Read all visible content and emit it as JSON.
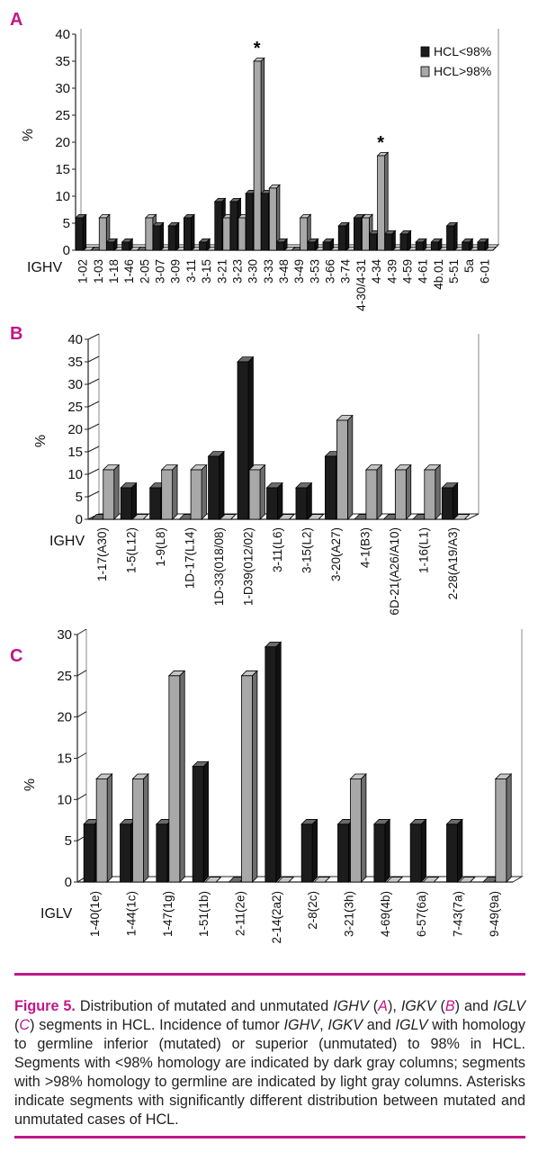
{
  "caption": {
    "figure_label": "Figure 5.",
    "t1": " Distribution of mutated and unmutated ",
    "t2": "IGHV",
    "t3": " (",
    "a": "A",
    "t4": "), ",
    "t5": "IGKV",
    "t6": " (",
    "b": "B",
    "t7": ") and ",
    "t8": "IGLV",
    "t9": " (",
    "c": "C",
    "t10": ") segments in HCL. Incidence of tumor ",
    "t11": "IGHV",
    "t12": ", ",
    "t13": "IGKV",
    "t14": " and ",
    "t15": "IGLV",
    "t16": " with homology to germline inferior (mutated) or superior (unmutated) to 98% in HCL. Segments with <98% homology are indicated by dark gray columns; segments with >98% homology to germline are indicated by light gray columns. Asterisks indicate segments with significantly different distribution between mutated and unmutated cases of HCL."
  },
  "chart_data": [
    {
      "panel": "A",
      "type": "bar",
      "ylabel": "%",
      "xlabel": "IGHV",
      "ylim": [
        0,
        40
      ],
      "yticks": [
        0,
        5,
        10,
        15,
        20,
        25,
        30,
        35,
        40
      ],
      "legend": "top-right",
      "categories": [
        "1-02",
        "1-03",
        "1-18",
        "1-46",
        "2-05",
        "3-07",
        "3-09",
        "3-11",
        "3-15",
        "3-21",
        "3-23",
        "3-30",
        "3-33",
        "3-48",
        "3-49",
        "3-53",
        "3-66",
        "3-74",
        "4-30/4-31",
        "4-34",
        "4-39",
        "4-59",
        "4-61",
        "4b.01",
        "5-51",
        "5a",
        "6-01"
      ],
      "series": [
        {
          "name": "HCL<98%",
          "color": "#1c1c1c",
          "values": [
            6,
            0,
            1.5,
            1.5,
            0,
            4.5,
            4.5,
            6,
            1.5,
            9,
            9,
            10.5,
            10.5,
            1.5,
            0,
            1.5,
            1.5,
            4.5,
            6,
            3,
            3,
            3,
            1.5,
            1.5,
            4.5,
            1.5,
            1.5
          ]
        },
        {
          "name": "HCL>98%",
          "color": "#a8a8a8",
          "values": [
            0,
            6,
            0,
            0,
            6,
            0,
            0,
            0,
            0,
            6,
            6,
            35,
            11.5,
            0,
            6,
            0,
            0,
            0,
            6,
            17.5,
            0,
            0,
            0,
            0,
            0,
            0,
            0
          ]
        }
      ],
      "annotations": [
        {
          "category": "3-30",
          "text": "*"
        },
        {
          "category": "4-34",
          "text": "*"
        }
      ]
    },
    {
      "panel": "B",
      "type": "bar",
      "ylabel": "%",
      "xlabel": "IGHV",
      "ylim": [
        0,
        40
      ],
      "yticks": [
        0,
        5,
        10,
        15,
        20,
        25,
        30,
        35,
        40
      ],
      "categories": [
        "1-17(A30)",
        "1-5(L12)",
        "1-9(L8)",
        "1D-17(L14)",
        "1D-33(018/08)",
        "1-D39(012/02)",
        "3-11(L6)",
        "3-15(L2)",
        "3-20(A27)",
        "4-1(B3)",
        "6D-21(A26/A10)",
        "1-16(L1)",
        "2-28(A19/A3)"
      ],
      "series": [
        {
          "color": "#1c1c1c",
          "values": [
            0,
            7,
            7,
            0,
            14,
            35,
            7,
            7,
            14,
            0,
            0,
            0,
            7
          ]
        },
        {
          "color": "#a8a8a8",
          "values": [
            11,
            0,
            11,
            11,
            0,
            11,
            0,
            0,
            22,
            11,
            11,
            11,
            0
          ]
        }
      ]
    },
    {
      "panel": "C",
      "type": "bar",
      "ylabel": "%",
      "xlabel": "IGLV",
      "ylim": [
        0,
        30
      ],
      "yticks": [
        0,
        5,
        10,
        15,
        20,
        25,
        30
      ],
      "categories": [
        "1-40(1e)",
        "1-44(1c)",
        "1-47(1g)",
        "1-51(1b)",
        "2-11(2e)",
        "2-14(2a2)",
        "2-8(2c)",
        "3-21(3h)",
        "4-69(4b)",
        "6-57(6a)",
        "7-43(7a)",
        "9-49(9a)"
      ],
      "series": [
        {
          "color": "#1c1c1c",
          "values": [
            7,
            7,
            7,
            14,
            0,
            28.5,
            7,
            7,
            7,
            7,
            7,
            0
          ]
        },
        {
          "color": "#a8a8a8",
          "values": [
            12.5,
            12.5,
            25,
            0,
            25,
            0,
            0,
            12.5,
            0,
            0,
            0,
            12.5
          ]
        }
      ]
    }
  ]
}
